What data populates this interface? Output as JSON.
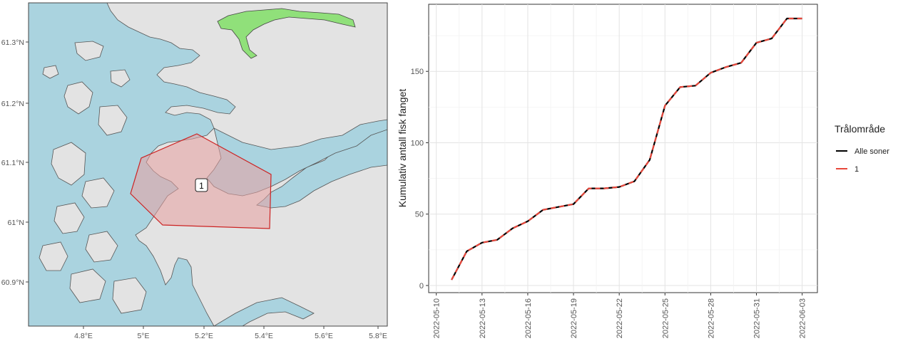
{
  "map": {
    "x_ticks": [
      "4.8°E",
      "5°E",
      "5.2°E",
      "5.4°E",
      "5.6°E",
      "5.8°E"
    ],
    "y_ticks": [
      "61.3°N",
      "61.2°N",
      "61.1°N",
      "61°N",
      "60.9°N"
    ],
    "zone_label": "1",
    "colors": {
      "sea": "#aad3df",
      "land": "#e3e3e3",
      "zone_fill": "#e8a0a0",
      "zone_line": "#cc2222",
      "river": "#90e07a"
    }
  },
  "chart_data": {
    "type": "line",
    "ylabel": "Kumulativ antall fisk fanget",
    "ylim": [
      -5,
      197
    ],
    "y_ticks": [
      0,
      50,
      100,
      150
    ],
    "x_ticks": [
      "2022-05-10",
      "2022-05-13",
      "2022-05-16",
      "2022-05-19",
      "2022-05-22",
      "2022-05-25",
      "2022-05-28",
      "2022-05-31",
      "2022-06-03"
    ],
    "x": [
      "2022-05-11",
      "2022-05-12",
      "2022-05-13",
      "2022-05-14",
      "2022-05-15",
      "2022-05-16",
      "2022-05-17",
      "2022-05-18",
      "2022-05-19",
      "2022-05-20",
      "2022-05-21",
      "2022-05-22",
      "2022-05-23",
      "2022-05-24",
      "2022-05-25",
      "2022-05-26",
      "2022-05-27",
      "2022-05-28",
      "2022-05-29",
      "2022-05-30",
      "2022-05-31",
      "2022-06-01",
      "2022-06-02",
      "2022-06-03"
    ],
    "series": [
      {
        "name": "Alle soner",
        "color": "#000000",
        "values": [
          4,
          24,
          30,
          32,
          40,
          45,
          53,
          55,
          57,
          68,
          68,
          69,
          73,
          88,
          126,
          139,
          140,
          149,
          153,
          156,
          170,
          173,
          187,
          187
        ]
      },
      {
        "name": "1",
        "color": "#e8473b",
        "values": [
          4,
          24,
          30,
          32,
          40,
          45,
          53,
          55,
          57,
          68,
          68,
          69,
          73,
          88,
          126,
          139,
          140,
          149,
          153,
          156,
          170,
          173,
          187,
          187
        ]
      }
    ],
    "legend": {
      "title": "Trålområde",
      "position": "right"
    },
    "grid": true
  }
}
